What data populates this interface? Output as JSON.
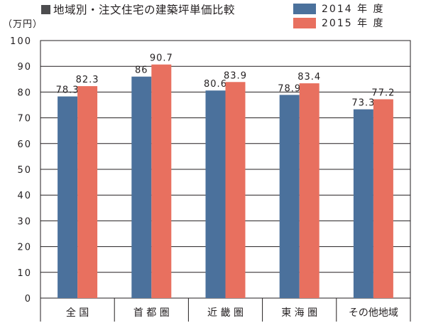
{
  "chart_data": {
    "type": "bar",
    "title": "地域別・注文住宅の建築坪単価比較",
    "unit_label": "（万円）",
    "categories": [
      "全 国",
      "首 都 圏",
      "近 畿 圏",
      "東 海 圏",
      "その他地域"
    ],
    "series": [
      {
        "name": "2014 年 度",
        "values": [
          78.3,
          86,
          80.6,
          78.9,
          73.3
        ],
        "labels": [
          "78.3",
          "86",
          "80.6",
          "78.9",
          "73.3"
        ],
        "color": "#4b719c"
      },
      {
        "name": "2015 年 度",
        "values": [
          82.3,
          90.7,
          83.9,
          83.4,
          77.2
        ],
        "labels": [
          "82.3",
          "90.7",
          "83.9",
          "83.4",
          "77.2"
        ],
        "color": "#e8705f"
      }
    ],
    "ylim": [
      0,
      100
    ],
    "yticks": [
      "0",
      "10",
      "20",
      "30",
      "40",
      "50",
      "60",
      "70",
      "80",
      "90",
      "100"
    ],
    "grid": true,
    "legend_position": "top-right",
    "xlabel": "",
    "ylabel": ""
  }
}
